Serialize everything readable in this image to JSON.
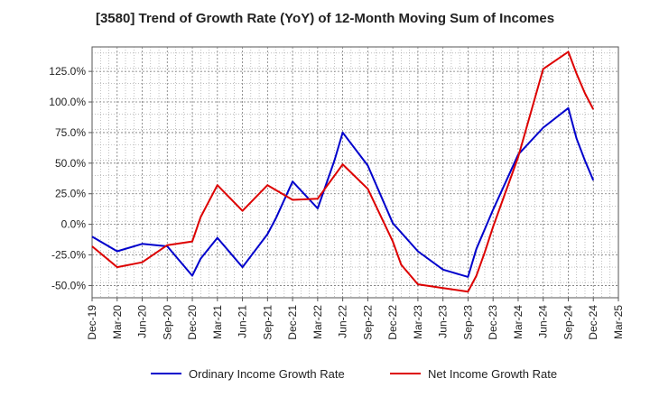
{
  "chart_data": {
    "type": "line",
    "title": "[3580]  Trend of Growth Rate (YoY) of 12-Month Moving Sum of Incomes",
    "xlabel": "",
    "ylabel": "",
    "ylim": [
      -60,
      145
    ],
    "y_ticks": [
      125,
      100,
      75,
      50,
      25,
      0,
      -25,
      -50
    ],
    "y_tick_labels": [
      "125.0%",
      "100.0%",
      "75.0%",
      "50.0%",
      "25.0%",
      "0.0%",
      "-25.0%",
      "-50.0%"
    ],
    "x_tick_labels": [
      "Dec-19",
      "Mar-20",
      "Jun-20",
      "Sep-20",
      "Dec-20",
      "Mar-21",
      "Jun-21",
      "Sep-21",
      "Dec-21",
      "Mar-22",
      "Jun-22",
      "Sep-22",
      "Dec-22",
      "Mar-23",
      "Jun-23",
      "Sep-23",
      "Dec-23",
      "Mar-24",
      "Jun-24",
      "Sep-24",
      "Dec-24",
      "Mar-25"
    ],
    "grid": true,
    "legend_position": "bottom",
    "series": [
      {
        "name": "Ordinary Income Growth Rate",
        "color": "#0000cc",
        "x": [
          "Dec-19",
          "Mar-20",
          "Jun-20",
          "Sep-20",
          "Dec-20",
          "Jan-21",
          "Mar-21",
          "Jun-21",
          "Aug-21",
          "Sep-21",
          "Oct-21",
          "Dec-21",
          "Mar-22",
          "May-22",
          "Jun-22",
          "Sep-22",
          "Dec-22",
          "Mar-23",
          "Jun-23",
          "Sep-23",
          "Oct-23",
          "Dec-23",
          "Mar-24",
          "Jun-24",
          "Sep-24",
          "Oct-24",
          "Nov-24",
          "Dec-24"
        ],
        "values": [
          -10,
          -22,
          -16,
          -18,
          -42,
          -28,
          -11,
          -35,
          -17,
          -8,
          5,
          35,
          13,
          52,
          75,
          48,
          1,
          -22,
          -37,
          -43,
          -20,
          12,
          57,
          79,
          95,
          70,
          52,
          36
        ]
      },
      {
        "name": "Net Income Growth Rate",
        "color": "#dd0000",
        "x": [
          "Dec-19",
          "Mar-20",
          "Jun-20",
          "Sep-20",
          "Dec-20",
          "Jan-21",
          "Mar-21",
          "Jun-21",
          "Sep-21",
          "Dec-21",
          "Mar-22",
          "Jun-22",
          "Sep-22",
          "Dec-22",
          "Jan-23",
          "Mar-23",
          "Jun-23",
          "Sep-23",
          "Oct-23",
          "Nov-23",
          "Dec-23",
          "Mar-24",
          "Jun-24",
          "Sep-24",
          "Oct-24",
          "Nov-24",
          "Dec-24"
        ],
        "values": [
          -18,
          -35,
          -31,
          -17,
          -14,
          6,
          32,
          11,
          32,
          20,
          21,
          49,
          29,
          -14,
          -33,
          -49,
          -52,
          -55,
          -42,
          -23,
          -2,
          55,
          127,
          141,
          123,
          107,
          94
        ]
      }
    ]
  }
}
